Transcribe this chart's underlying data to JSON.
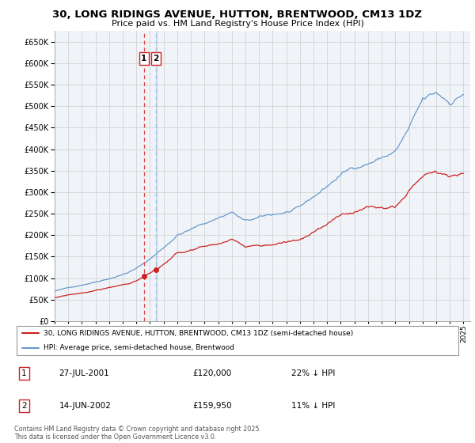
{
  "title": "30, LONG RIDINGS AVENUE, HUTTON, BRENTWOOD, CM13 1DZ",
  "subtitle": "Price paid vs. HM Land Registry's House Price Index (HPI)",
  "ylim": [
    0,
    675000
  ],
  "yticks": [
    0,
    50000,
    100000,
    150000,
    200000,
    250000,
    300000,
    350000,
    400000,
    450000,
    500000,
    550000,
    600000,
    650000
  ],
  "xlim_start": 1995.0,
  "xlim_end": 2025.5,
  "line_red_color": "#cc2222",
  "line_blue_color": "#6699cc",
  "vline1_color": "#dd4444",
  "vline2_color": "#aabbdd",
  "transaction1_date": 2001.55,
  "transaction1_price": 120000,
  "transaction2_date": 2002.45,
  "transaction2_price": 159950,
  "legend_line1": "30, LONG RIDINGS AVENUE, HUTTON, BRENTWOOD, CM13 1DZ (semi-detached house)",
  "legend_line2": "HPI: Average price, semi-detached house, Brentwood",
  "table_entries": [
    {
      "num": "1",
      "date": "27-JUL-2001",
      "price": "£120,000",
      "hpi": "22% ↓ HPI"
    },
    {
      "num": "2",
      "date": "14-JUN-2002",
      "price": "£159,950",
      "hpi": "11% ↓ HPI"
    }
  ],
  "footnote": "Contains HM Land Registry data © Crown copyright and database right 2025.\nThis data is licensed under the Open Government Licence v3.0.",
  "background_color": "#ffffff",
  "grid_color": "#cccccc",
  "plot_bg": "#f0f4f8"
}
